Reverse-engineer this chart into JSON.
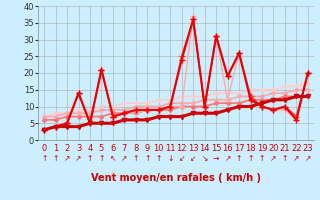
{
  "title": "",
  "xlabel": "Vent moyen/en rafales ( km/h )",
  "ylabel": "",
  "background_color": "#cceeff",
  "grid_color": "#aaaaaa",
  "xlim": [
    -0.5,
    23.5
  ],
  "ylim": [
    0,
    40
  ],
  "yticks": [
    0,
    5,
    10,
    15,
    20,
    25,
    30,
    35,
    40
  ],
  "xticks": [
    0,
    1,
    2,
    3,
    4,
    5,
    6,
    7,
    8,
    9,
    10,
    11,
    12,
    13,
    14,
    15,
    16,
    17,
    18,
    19,
    20,
    21,
    22,
    23
  ],
  "lines": [
    {
      "x": [
        0,
        1,
        2,
        3,
        4,
        5,
        6,
        7,
        8,
        9,
        10,
        11,
        12,
        13,
        14,
        15,
        16,
        17,
        18,
        19,
        20,
        21,
        22,
        23
      ],
      "y": [
        3,
        4,
        4,
        4,
        5,
        5,
        5,
        6,
        6,
        6,
        7,
        7,
        7,
        8,
        8,
        8,
        9,
        10,
        10,
        11,
        12,
        12,
        13,
        13
      ],
      "color": "#cc0000",
      "lw": 2.2,
      "marker": "v",
      "ms": 3,
      "mfc": "#cc0000",
      "zorder": 10
    },
    {
      "x": [
        0,
        1,
        2,
        3,
        4,
        5,
        6,
        7,
        8,
        9,
        10,
        11,
        12,
        13,
        14,
        15,
        16,
        17,
        18,
        19,
        20,
        21,
        22,
        23
      ],
      "y": [
        6,
        6,
        7,
        7,
        7,
        7,
        8,
        8,
        8,
        9,
        9,
        9,
        10,
        10,
        10,
        11,
        11,
        11,
        12,
        12,
        12,
        13,
        13,
        13
      ],
      "color": "#ff7777",
      "lw": 1.3,
      "marker": "D",
      "ms": 2,
      "mfc": "#ff7777",
      "zorder": 4
    },
    {
      "x": [
        0,
        1,
        2,
        3,
        4,
        5,
        6,
        7,
        8,
        9,
        10,
        11,
        12,
        13,
        14,
        15,
        16,
        17,
        18,
        19,
        20,
        21,
        22,
        23
      ],
      "y": [
        7,
        7,
        8,
        8,
        8,
        9,
        9,
        9,
        10,
        10,
        10,
        11,
        11,
        11,
        12,
        12,
        12,
        13,
        13,
        13,
        14,
        14,
        15,
        15
      ],
      "color": "#ffaaaa",
      "lw": 1.3,
      "marker": "D",
      "ms": 2,
      "mfc": "#ffaaaa",
      "zorder": 3
    },
    {
      "x": [
        0,
        1,
        2,
        3,
        4,
        5,
        6,
        7,
        8,
        9,
        10,
        11,
        12,
        13,
        14,
        15,
        16,
        17,
        18,
        19,
        20,
        21,
        22,
        23
      ],
      "y": [
        7,
        8,
        8,
        9,
        9,
        10,
        10,
        11,
        11,
        11,
        12,
        12,
        13,
        13,
        13,
        14,
        14,
        14,
        15,
        15,
        15,
        16,
        16,
        17
      ],
      "color": "#ffcccc",
      "lw": 1.2,
      "marker": "D",
      "ms": 2,
      "mfc": "#ffcccc",
      "zorder": 2
    },
    {
      "x": [
        0,
        1,
        2,
        3,
        4,
        5,
        6,
        7,
        8,
        9,
        10,
        11,
        12,
        13,
        14,
        15,
        16,
        17,
        18,
        19,
        20,
        21,
        22,
        23
      ],
      "y": [
        3,
        4,
        5,
        14,
        5,
        21,
        7,
        8,
        8,
        9,
        9,
        10,
        10,
        37,
        10,
        31,
        12,
        26,
        12,
        10,
        9,
        9,
        6,
        20
      ],
      "color": "#ffaaaa",
      "lw": 1.0,
      "marker": "+",
      "ms": 5,
      "mfc": "#ffaaaa",
      "zorder": 6
    },
    {
      "x": [
        0,
        1,
        2,
        3,
        4,
        5,
        6,
        7,
        8,
        9,
        10,
        11,
        12,
        13,
        14,
        15,
        16,
        17,
        18,
        19,
        20,
        21,
        22,
        23
      ],
      "y": [
        3,
        4,
        5,
        14,
        5,
        21,
        7,
        8,
        9,
        9,
        9,
        10,
        25,
        36,
        10,
        31,
        19,
        26,
        13,
        10,
        9,
        10,
        7,
        20
      ],
      "color": "#ff3333",
      "lw": 1.2,
      "marker": "+",
      "ms": 5,
      "mfc": "#ff3333",
      "zorder": 7
    },
    {
      "x": [
        0,
        1,
        2,
        3,
        4,
        5,
        6,
        7,
        8,
        9,
        10,
        11,
        12,
        13,
        14,
        15,
        16,
        17,
        18,
        19,
        20,
        21,
        22,
        23
      ],
      "y": [
        3,
        4,
        5,
        14,
        5,
        21,
        7,
        8,
        9,
        9,
        9,
        10,
        24,
        36,
        10,
        31,
        19,
        26,
        12,
        10,
        9,
        10,
        6,
        20
      ],
      "color": "#ee0000",
      "lw": 1.5,
      "marker": "+",
      "ms": 5,
      "mfc": "#ee0000",
      "zorder": 8
    }
  ],
  "arrow_labels": [
    "↑",
    "↑",
    "↗",
    "↗",
    "↑",
    "↑",
    "↖",
    "↗",
    "↑",
    "↑",
    "↑",
    "↓",
    "↙",
    "↙",
    "↘",
    "→",
    "↗",
    "↑",
    "↑",
    "↑",
    "↗",
    "↑",
    "↗",
    "↗"
  ],
  "xlabel_color": "#cc0000",
  "xlabel_fontsize": 7,
  "tick_fontsize": 6,
  "ytick_color": "#333333",
  "xtick_color": "#cc0000"
}
